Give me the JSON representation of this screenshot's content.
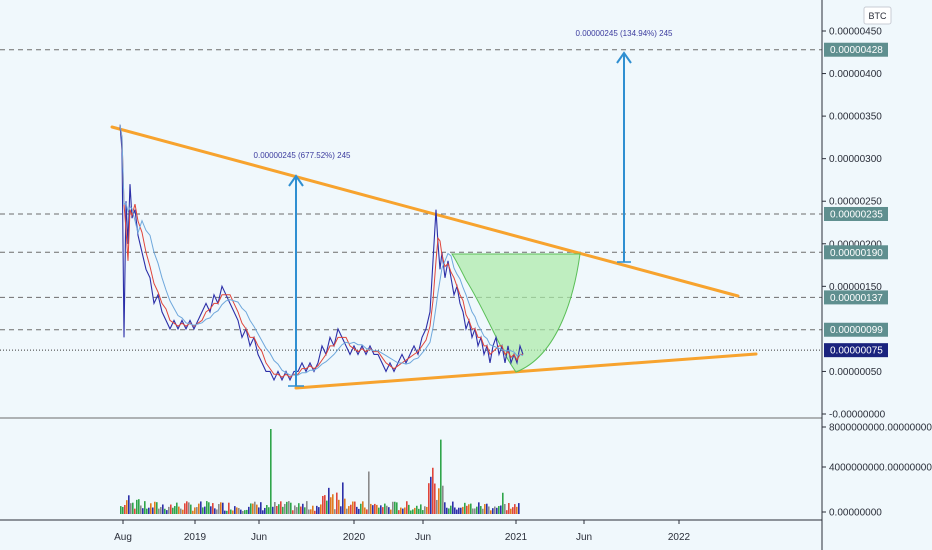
{
  "currency_badge": "BTC",
  "chart_data": {
    "type": "candlestick",
    "currency": "BTC",
    "price_axis": {
      "ticks": [
        "0.00000450",
        "0.00000400",
        "0.00000350",
        "0.00000300",
        "0.00000250",
        "0.00000200",
        "0.00000150",
        "0.00000050",
        "-0.00000000"
      ],
      "ylim": [
        0.0,
        4.65e-06
      ]
    },
    "volume_axis": {
      "ticks": [
        "8000000000.00000000",
        "4000000000.00000000",
        "0.00000000"
      ]
    },
    "x_axis": {
      "ticks": [
        "Aug",
        "2019",
        "Jun",
        "2020",
        "Jun",
        "2021",
        "Jun",
        "2022"
      ]
    },
    "price_levels": [
      {
        "value": 4.28e-06,
        "label": "0.00000428",
        "style": "dashed",
        "color": "#5f8f8f"
      },
      {
        "value": 2.35e-06,
        "label": "0.00000235",
        "style": "dashed",
        "color": "#5f8f8f"
      },
      {
        "value": 1.9e-06,
        "label": "0.00000190",
        "style": "dashed",
        "color": "#5f8f8f"
      },
      {
        "value": 1.37e-06,
        "label": "0.00000137",
        "style": "dashed",
        "color": "#5f8f8f"
      },
      {
        "value": 9.9e-07,
        "label": "0.00000099",
        "style": "dashed",
        "color": "#5f8f8f"
      },
      {
        "value": 7.5e-07,
        "label": "0.00000075",
        "style": "dotted",
        "color": "#1a237e",
        "current": true
      }
    ],
    "annotations": [
      {
        "text": "0.00000245 (677.52%) 245"
      },
      {
        "text": "0.00000245 (134.94%) 245"
      }
    ],
    "price_path": [
      [
        0,
        3.4e-06
      ],
      [
        2,
        3.1e-06
      ],
      [
        4,
        9e-07
      ],
      [
        6,
        2.5e-06
      ],
      [
        8,
        2e-06
      ],
      [
        10,
        2.7e-06
      ],
      [
        12,
        2.3e-06
      ],
      [
        15,
        2.4e-06
      ],
      [
        18,
        2.1e-06
      ],
      [
        22,
        1.9e-06
      ],
      [
        26,
        1.7e-06
      ],
      [
        30,
        1.6e-06
      ],
      [
        34,
        1.3e-06
      ],
      [
        38,
        1.4e-06
      ],
      [
        42,
        1.2e-06
      ],
      [
        46,
        1.1e-06
      ],
      [
        50,
        1e-06
      ],
      [
        54,
        1.1e-06
      ],
      [
        58,
        1e-06
      ],
      [
        62,
        1.1e-06
      ],
      [
        66,
        1e-06
      ],
      [
        70,
        1.1e-06
      ],
      [
        74,
        1e-06
      ],
      [
        78,
        1.1e-06
      ],
      [
        82,
        1.2e-06
      ],
      [
        86,
        1.3e-06
      ],
      [
        90,
        1.2e-06
      ],
      [
        94,
        1.4e-06
      ],
      [
        98,
        1.3e-06
      ],
      [
        102,
        1.5e-06
      ],
      [
        106,
        1.4e-06
      ],
      [
        110,
        1.3e-06
      ],
      [
        114,
        1.2e-06
      ],
      [
        118,
        1.1e-06
      ],
      [
        122,
        9e-07
      ],
      [
        126,
        1e-06
      ],
      [
        130,
        8e-07
      ],
      [
        134,
        9e-07
      ],
      [
        138,
        7e-07
      ],
      [
        142,
        6e-07
      ],
      [
        146,
        5e-07
      ],
      [
        150,
        5e-07
      ],
      [
        154,
        4e-07
      ],
      [
        158,
        5e-07
      ],
      [
        162,
        4e-07
      ],
      [
        166,
        5e-07
      ],
      [
        170,
        4e-07
      ],
      [
        174,
        5e-07
      ],
      [
        178,
        5e-07
      ],
      [
        182,
        6e-07
      ],
      [
        186,
        5e-07
      ],
      [
        190,
        6e-07
      ],
      [
        194,
        5e-07
      ],
      [
        198,
        6e-07
      ],
      [
        202,
        8e-07
      ],
      [
        206,
        7e-07
      ],
      [
        210,
        9e-07
      ],
      [
        214,
        8e-07
      ],
      [
        218,
        1e-06
      ],
      [
        222,
        9e-07
      ],
      [
        226,
        8e-07
      ],
      [
        230,
        7e-07
      ],
      [
        234,
        8e-07
      ],
      [
        238,
        7e-07
      ],
      [
        242,
        8e-07
      ],
      [
        246,
        7e-07
      ],
      [
        250,
        8e-07
      ],
      [
        254,
        7e-07
      ],
      [
        258,
        7e-07
      ],
      [
        262,
        6e-07
      ],
      [
        266,
        5e-07
      ],
      [
        270,
        6e-07
      ],
      [
        274,
        5e-07
      ],
      [
        278,
        6e-07
      ],
      [
        282,
        7e-07
      ],
      [
        286,
        6e-07
      ],
      [
        290,
        7e-07
      ],
      [
        294,
        8e-07
      ],
      [
        298,
        7e-07
      ],
      [
        302,
        9e-07
      ],
      [
        306,
        1e-06
      ],
      [
        310,
        1.2e-06
      ],
      [
        313,
        1.8e-06
      ],
      [
        316,
        2.4e-06
      ],
      [
        318,
        2e-06
      ],
      [
        320,
        1.7e-06
      ],
      [
        322,
        1.9e-06
      ],
      [
        325,
        1.6e-06
      ],
      [
        328,
        1.8e-06
      ],
      [
        331,
        1.6e-06
      ],
      [
        334,
        1.4e-06
      ],
      [
        337,
        1.5e-06
      ],
      [
        340,
        1.3e-06
      ],
      [
        343,
        1.2e-06
      ],
      [
        346,
        1e-06
      ],
      [
        349,
        1.1e-06
      ],
      [
        352,
        9e-07
      ],
      [
        355,
        1e-06
      ],
      [
        358,
        8e-07
      ],
      [
        361,
        9e-07
      ],
      [
        364,
        7e-07
      ],
      [
        367,
        8e-07
      ],
      [
        370,
        6e-07
      ],
      [
        373,
        8e-07
      ],
      [
        376,
        9e-07
      ],
      [
        379,
        7e-07
      ],
      [
        382,
        8e-07
      ],
      [
        385,
        6e-07
      ],
      [
        388,
        8e-07
      ],
      [
        391,
        6e-07
      ],
      [
        394,
        7e-07
      ],
      [
        397,
        6e-07
      ],
      [
        400,
        8e-07
      ],
      [
        403,
        7e-07
      ]
    ],
    "volume_spikes": [
      [
        150,
        8000000000
      ],
      [
        320,
        7000000000
      ],
      [
        248,
        4000000000
      ],
      [
        310,
        3500000000
      ],
      [
        382,
        2000000000
      ]
    ]
  }
}
